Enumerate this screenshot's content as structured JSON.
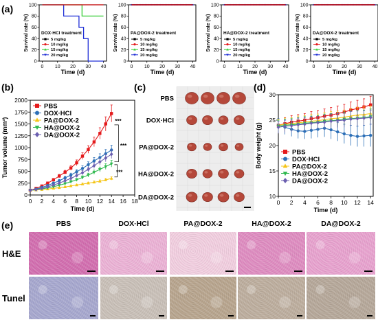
{
  "panels": {
    "a_label": "(a)",
    "b_label": "(b)",
    "c_label": "(c)",
    "d_label": "(d)",
    "e_label": "(e)"
  },
  "colors": {
    "c5": "#000000",
    "c10": "#e41a1c",
    "c15": "#33cc33",
    "c20": "#1f2fd6",
    "pbs": "#e41a1c",
    "dox": "#2c6fb7",
    "pa": "#f5c518",
    "ha": "#2db84d",
    "da": "#6b5fb0"
  },
  "chart_data": [
    {
      "id": "a1",
      "type": "line",
      "title": "DOX·HCl treatment",
      "xlabel": "Time (d)",
      "ylabel": "Survival rate (%)",
      "xlim": [
        -2,
        42
      ],
      "ylim": [
        0,
        100
      ],
      "xticks": [
        0,
        10,
        20,
        30,
        40
      ],
      "yticks": [
        0,
        20,
        40,
        60,
        80,
        100
      ],
      "legend": "bottom-left",
      "series": [
        {
          "name": "5 mg/kg",
          "x": [
            0,
            40
          ],
          "y": [
            100,
            100
          ]
        },
        {
          "name": "10 mg/kg",
          "x": [
            0,
            40
          ],
          "y": [
            100,
            100
          ]
        },
        {
          "name": "15 mg/kg",
          "x": [
            0,
            26,
            26,
            40
          ],
          "y": [
            100,
            100,
            80,
            80
          ]
        },
        {
          "name": "20 mg/kg",
          "x": [
            0,
            14,
            14,
            24,
            24,
            27,
            27,
            30,
            30,
            40
          ],
          "y": [
            100,
            100,
            80,
            80,
            60,
            60,
            40,
            40,
            0,
            0
          ]
        }
      ]
    },
    {
      "id": "a2",
      "type": "line",
      "title": "PA@DOX-2 treatment",
      "xlabel": "Time (d)",
      "ylabel": "Survival rate (%)",
      "xlim": [
        -2,
        42
      ],
      "ylim": [
        0,
        100
      ],
      "xticks": [
        0,
        10,
        20,
        30,
        40
      ],
      "yticks": [
        0,
        20,
        40,
        60,
        80,
        100
      ],
      "legend": "bottom-left",
      "series": [
        {
          "name": "5 mg/kg",
          "x": [
            0,
            40
          ],
          "y": [
            100,
            100
          ]
        },
        {
          "name": "10 mg/kg",
          "x": [
            0,
            40
          ],
          "y": [
            100,
            100
          ]
        },
        {
          "name": "15 mg/kg",
          "x": [
            0,
            40
          ],
          "y": [
            100,
            100
          ]
        },
        {
          "name": "20 mg/kg",
          "x": [
            0,
            40
          ],
          "y": [
            100,
            100
          ]
        }
      ]
    },
    {
      "id": "a3",
      "type": "line",
      "title": "HA@DOX-2 treatment",
      "xlabel": "Time (d)",
      "ylabel": "Survival rate (%)",
      "xlim": [
        -2,
        42
      ],
      "ylim": [
        0,
        100
      ],
      "xticks": [
        0,
        10,
        20,
        30,
        40
      ],
      "yticks": [
        0,
        20,
        40,
        60,
        80,
        100
      ],
      "legend": "bottom-left",
      "series": [
        {
          "name": "5 mg/kg",
          "x": [
            0,
            40
          ],
          "y": [
            100,
            100
          ]
        },
        {
          "name": "10 mg/kg",
          "x": [
            0,
            40
          ],
          "y": [
            100,
            100
          ]
        },
        {
          "name": "15 mg/kg",
          "x": [
            0,
            40
          ],
          "y": [
            100,
            100
          ]
        },
        {
          "name": "20 mg/kg",
          "x": [
            0,
            40
          ],
          "y": [
            100,
            100
          ]
        }
      ]
    },
    {
      "id": "a4",
      "type": "line",
      "title": "DA@DOX-2 treatment",
      "xlabel": "Time (d)",
      "ylabel": "Survival rate (%)",
      "xlim": [
        -2,
        42
      ],
      "ylim": [
        0,
        100
      ],
      "xticks": [
        0,
        10,
        20,
        30,
        40
      ],
      "yticks": [
        0,
        20,
        40,
        60,
        80,
        100
      ],
      "legend": "bottom-left",
      "series": [
        {
          "name": "5 mg/kg",
          "x": [
            0,
            40
          ],
          "y": [
            100,
            100
          ]
        },
        {
          "name": "10 mg/kg",
          "x": [
            0,
            40
          ],
          "y": [
            100,
            100
          ]
        },
        {
          "name": "15 mg/kg",
          "x": [
            0,
            40
          ],
          "y": [
            100,
            100
          ]
        },
        {
          "name": "20 mg/kg",
          "x": [
            0,
            40
          ],
          "y": [
            100,
            100
          ]
        }
      ]
    },
    {
      "id": "b",
      "type": "line",
      "xlabel": "Time (d)",
      "ylabel": "Tumor volume (mm³)",
      "xlim": [
        0,
        18
      ],
      "ylim": [
        0,
        2000
      ],
      "xticks": [
        0,
        2,
        4,
        6,
        8,
        10,
        12,
        14,
        16,
        18
      ],
      "yticks": [
        0,
        250,
        500,
        750,
        1000,
        1250,
        1500,
        1750,
        2000
      ],
      "legend": "top-left",
      "annotations": [
        "***",
        "***",
        "***"
      ],
      "x": [
        0,
        1,
        2,
        3,
        4,
        5,
        6,
        7,
        8,
        9,
        10,
        11,
        12,
        13,
        14
      ],
      "series": [
        {
          "name": "PBS",
          "values": [
            100,
            140,
            190,
            250,
            320,
            400,
            480,
            570,
            680,
            820,
            960,
            1120,
            1300,
            1500,
            1720
          ],
          "err": [
            10,
            15,
            20,
            25,
            30,
            35,
            40,
            50,
            60,
            70,
            80,
            100,
            120,
            150,
            180
          ]
        },
        {
          "name": "DOX·HCl",
          "values": [
            100,
            125,
            160,
            200,
            250,
            300,
            360,
            420,
            490,
            560,
            640,
            720,
            790,
            870,
            950
          ],
          "err": [
            8,
            10,
            15,
            20,
            25,
            30,
            35,
            40,
            45,
            55,
            60,
            70,
            80,
            90,
            100
          ]
        },
        {
          "name": "PA@DOX-2",
          "values": [
            100,
            105,
            115,
            125,
            140,
            155,
            170,
            190,
            210,
            230,
            250,
            270,
            290,
            320,
            350
          ],
          "err": [
            5,
            5,
            8,
            10,
            10,
            12,
            15,
            15,
            18,
            20,
            22,
            25,
            28,
            30,
            35
          ]
        },
        {
          "name": "HA@DOX-2",
          "values": [
            100,
            110,
            130,
            150,
            175,
            205,
            240,
            280,
            320,
            370,
            420,
            480,
            540,
            600,
            660
          ],
          "err": [
            6,
            8,
            10,
            12,
            15,
            18,
            20,
            25,
            30,
            35,
            40,
            45,
            50,
            60,
            70
          ]
        },
        {
          "name": "DA@DOX-2",
          "values": [
            100,
            115,
            140,
            170,
            210,
            250,
            300,
            350,
            410,
            470,
            540,
            620,
            700,
            780,
            860
          ],
          "err": [
            7,
            9,
            12,
            15,
            20,
            25,
            30,
            35,
            40,
            45,
            50,
            60,
            70,
            80,
            90
          ]
        }
      ]
    },
    {
      "id": "d",
      "type": "line",
      "xlabel": "Time (d)",
      "ylabel": "Body weight (g)",
      "xlim": [
        0,
        14.4
      ],
      "ylim": [
        10,
        30
      ],
      "xticks": [
        0,
        2,
        4,
        6,
        8,
        10,
        12,
        14
      ],
      "yticks": [
        10,
        15,
        20,
        25,
        30
      ],
      "legend": "bottom-left",
      "x": [
        0,
        1,
        2,
        3,
        4,
        5,
        6,
        7,
        8,
        9,
        10,
        11,
        12,
        13,
        14
      ],
      "series": [
        {
          "name": "PBS",
          "values": [
            24.0,
            24.3,
            24.6,
            24.8,
            25.0,
            25.3,
            25.5,
            25.8,
            26.0,
            26.3,
            26.6,
            27.0,
            27.3,
            27.6,
            28.0
          ],
          "err": [
            1.2,
            1.2,
            1.3,
            1.3,
            1.3,
            1.4,
            1.4,
            1.4,
            1.5,
            1.5,
            1.5,
            1.6,
            1.6,
            1.6,
            1.7
          ]
        },
        {
          "name": "DOX·HCl",
          "values": [
            24.0,
            23.6,
            23.2,
            22.9,
            22.8,
            23.0,
            23.2,
            23.4,
            23.1,
            22.7,
            22.3,
            22.0,
            21.8,
            21.9,
            22.0
          ],
          "err": [
            1.3,
            1.4,
            1.4,
            1.5,
            1.5,
            1.6,
            1.6,
            1.7,
            1.8,
            1.8,
            1.9,
            2.0,
            2.0,
            2.1,
            2.2
          ]
        },
        {
          "name": "PA@DOX-2",
          "values": [
            24.0,
            24.2,
            24.3,
            24.5,
            24.6,
            24.8,
            24.9,
            25.1,
            25.3,
            25.4,
            25.6,
            25.8,
            26.0,
            26.1,
            26.3
          ],
          "err": [
            1.2,
            1.2,
            1.2,
            1.3,
            1.3,
            1.3,
            1.3,
            1.4,
            1.4,
            1.4,
            1.4,
            1.5,
            1.5,
            1.5,
            1.5
          ]
        },
        {
          "name": "HA@DOX-2",
          "values": [
            23.8,
            24.0,
            24.1,
            24.2,
            24.4,
            24.5,
            24.6,
            24.8,
            24.9,
            25.0,
            25.2,
            25.3,
            25.4,
            25.5,
            25.7
          ],
          "err": [
            1.2,
            1.2,
            1.2,
            1.3,
            1.3,
            1.3,
            1.3,
            1.4,
            1.4,
            1.4,
            1.4,
            1.5,
            1.5,
            1.5,
            1.5
          ]
        },
        {
          "name": "DA@DOX-2",
          "values": [
            23.6,
            23.8,
            23.9,
            24.1,
            24.2,
            24.4,
            24.5,
            24.6,
            24.8,
            24.9,
            25.0,
            25.2,
            25.3,
            25.4,
            25.5
          ],
          "err": [
            1.2,
            1.2,
            1.2,
            1.3,
            1.3,
            1.3,
            1.3,
            1.4,
            1.4,
            1.4,
            1.4,
            1.5,
            1.5,
            1.5,
            1.5
          ]
        }
      ]
    }
  ],
  "tumor_photo": {
    "rows": [
      "PBS",
      "DOX·HCl",
      "PA@DOX-2",
      "HA@DOX-2",
      "DA@DOX-2"
    ],
    "tumors_per_row": 4,
    "tumor_color": "#b5483a",
    "background_color": "#ededed"
  },
  "histology": {
    "columns": [
      "PBS",
      "DOX·HCl",
      "PA@DOX-2",
      "HA@DOX-2",
      "DA@DOX-2"
    ],
    "rows": [
      "H&E",
      "Tunel"
    ],
    "he_colors": [
      "#d36fb0",
      "#ecb3d6",
      "#f2cfe0",
      "#df8dc1",
      "#e8a3cf"
    ],
    "tunel_colors": [
      "#a7a8cf",
      "#c9c0b8",
      "#b8a58e",
      "#bdae9e",
      "#b6a89a"
    ]
  }
}
